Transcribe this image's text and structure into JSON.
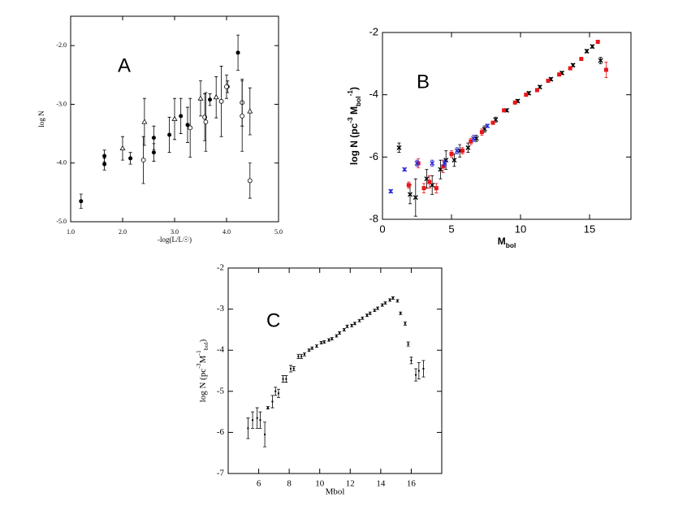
{
  "chart_data": [
    {
      "type": "scatter",
      "annotation": "A",
      "xlabel": "-log(L/L☉)",
      "ylabel": "log N",
      "xlim": [
        1.0,
        5.0
      ],
      "ylim": [
        -5.0,
        -1.5
      ],
      "xticks": [
        {
          "value": 1,
          "label": "1.0"
        },
        {
          "value": 2,
          "label": "2.0"
        },
        {
          "value": 3,
          "label": "3.0"
        },
        {
          "value": 4,
          "label": "4.0"
        },
        {
          "value": 5,
          "label": "5.0"
        }
      ],
      "yticks": [
        {
          "value": -2,
          "label": "-2.0"
        },
        {
          "value": -3,
          "label": "-3.0"
        },
        {
          "value": -4,
          "label": "-4.0"
        },
        {
          "value": -5,
          "label": "-5.0"
        }
      ],
      "series": [
        {
          "marker": "circle-filled",
          "color": "#000000",
          "x": [
            1.2,
            1.65,
            1.65,
            2.15,
            2.6,
            2.6,
            2.9,
            3.12,
            3.25,
            3.68,
            4.02,
            4.22
          ],
          "y": [
            -4.65,
            -3.88,
            -4.02,
            -3.92,
            -3.57,
            -3.82,
            -3.52,
            -3.2,
            -3.35,
            -2.92,
            -2.7,
            -2.12
          ],
          "err": [
            0.12,
            0.1,
            0.1,
            0.1,
            0.2,
            0.15,
            0.3,
            0.3,
            0.3,
            0.1,
            0.1,
            0.3
          ]
        },
        {
          "marker": "triangle",
          "color": "#000000",
          "x": [
            2.0,
            2.42,
            3.0,
            3.5,
            3.8,
            4.45
          ],
          "y": [
            -3.75,
            -3.3,
            -3.25,
            -2.9,
            -2.88,
            -3.12
          ],
          "err": [
            0.2,
            0.4,
            0.35,
            0.3,
            0.35,
            0.4
          ]
        },
        {
          "marker": "circle-open",
          "color": "#000000",
          "x": [
            2.4,
            3.3,
            3.58,
            3.6,
            3.9,
            4.0,
            4.3,
            4.3,
            4.45
          ],
          "y": [
            -3.95,
            -3.4,
            -3.22,
            -3.3,
            -2.95,
            -2.7,
            -2.97,
            -3.2,
            -4.3
          ],
          "err": [
            0.4,
            0.5,
            0.4,
            0.5,
            0.6,
            0.2,
            0.4,
            0.6,
            0.3
          ]
        }
      ]
    },
    {
      "type": "scatter",
      "annotation": "B",
      "xlabel": [
        "M",
        "bol"
      ],
      "ylabel": [
        "log N  (pc",
        "-3",
        " M",
        "bol",
        "-1",
        ")"
      ],
      "xlim": [
        0,
        18
      ],
      "ylim": [
        -8,
        -2
      ],
      "xticks": [
        0,
        5,
        10,
        15
      ],
      "yticks": [
        -2,
        -4,
        -6,
        -8
      ],
      "series": [
        {
          "marker": "cross",
          "color": "#000000",
          "x": [
            1.2,
            2.0,
            2.4,
            3.2,
            3.6,
            4.2,
            4.6,
            5.2,
            5.6,
            6.2,
            6.8,
            7.4,
            8.2,
            9.0,
            9.8,
            10.6,
            11.4,
            12.2,
            13.0,
            13.8,
            14.8,
            15.2,
            15.8
          ],
          "y": [
            -5.7,
            -7.2,
            -7.3,
            -6.7,
            -6.9,
            -6.4,
            -6.1,
            -6.1,
            -5.8,
            -5.7,
            -5.4,
            -5.1,
            -4.8,
            -4.5,
            -4.2,
            -3.95,
            -3.75,
            -3.5,
            -3.3,
            -3.05,
            -2.6,
            -2.45,
            -2.9
          ],
          "err": [
            0.15,
            0.3,
            0.6,
            0.3,
            0.3,
            0.3,
            0.3,
            0.2,
            0.2,
            0.15,
            0.1,
            0.1,
            0.08,
            0.05,
            0.05,
            0.05,
            0.05,
            0.05,
            0.05,
            0.05,
            0.05,
            0.05,
            0.1
          ]
        },
        {
          "marker": "square",
          "color": "#e8161b",
          "x": [
            1.9,
            2.6,
            3.0,
            3.4,
            3.9,
            4.4,
            5.0,
            5.8,
            6.4,
            7.2,
            8.0,
            8.8,
            9.6,
            10.4,
            11.2,
            12.0,
            12.8,
            13.6,
            14.4,
            15.6,
            16.2
          ],
          "y": [
            -6.9,
            -6.2,
            -7.0,
            -6.8,
            -7.0,
            -6.3,
            -5.9,
            -5.8,
            -5.5,
            -5.2,
            -4.9,
            -4.5,
            -4.25,
            -4.0,
            -3.85,
            -3.55,
            -3.35,
            -3.15,
            -2.85,
            -2.3,
            -3.2
          ],
          "err": [
            0.1,
            0.15,
            0.15,
            0.2,
            0.15,
            0.2,
            0.1,
            0.1,
            0.1,
            0.1,
            0.05,
            0.05,
            0.05,
            0.05,
            0.05,
            0.05,
            0.05,
            0.05,
            0.05,
            0.05,
            0.25
          ]
        },
        {
          "marker": "cross",
          "color": "#2b2bd6",
          "x": [
            0.6,
            1.6,
            2.5,
            3.6,
            4.5,
            5.4,
            6.6,
            7.6
          ],
          "y": [
            -7.1,
            -6.4,
            -6.2,
            -6.2,
            -6.2,
            -5.8,
            -5.4,
            -5.0
          ],
          "err": [
            0.05,
            0.05,
            0.1,
            0.1,
            0.1,
            0.1,
            0.1,
            0.05
          ]
        }
      ]
    },
    {
      "type": "scatter",
      "annotation": "C",
      "xlabel": "Mbol",
      "ylabel": [
        "log N  (pc",
        "-3",
        "M",
        "-1",
        "bol",
        ")"
      ],
      "xlim": [
        4,
        18
      ],
      "ylim": [
        -7,
        -2
      ],
      "xticks": [
        6,
        8,
        10,
        12,
        14,
        16
      ],
      "yticks": [
        -2,
        -3,
        -4,
        -5,
        -6,
        -7
      ],
      "series": [
        {
          "marker": "dot",
          "color": "#000000",
          "x": [
            5.3,
            5.6,
            5.9,
            6.1,
            6.4,
            6.6,
            6.9,
            7.1,
            7.3,
            7.6,
            7.8,
            8.1,
            8.3,
            8.6,
            8.8,
            9.0,
            9.3,
            9.5,
            9.8,
            10.1,
            10.3,
            10.6,
            10.8,
            11.1,
            11.3,
            11.6,
            11.8,
            12.1,
            12.3,
            12.6,
            12.8,
            13.1,
            13.3,
            13.6,
            13.8,
            14.1,
            14.3,
            14.6,
            14.8,
            15.1,
            15.3,
            15.6,
            15.8,
            16.0,
            16.3,
            16.5,
            16.8
          ],
          "y": [
            -5.9,
            -5.7,
            -5.65,
            -5.7,
            -6.05,
            -5.4,
            -5.25,
            -5.0,
            -5.05,
            -4.7,
            -4.7,
            -4.45,
            -4.45,
            -4.15,
            -4.15,
            -4.1,
            -4.0,
            -3.95,
            -3.9,
            -3.82,
            -3.8,
            -3.75,
            -3.72,
            -3.65,
            -3.58,
            -3.5,
            -3.42,
            -3.4,
            -3.35,
            -3.28,
            -3.22,
            -3.15,
            -3.1,
            -3.03,
            -2.98,
            -2.9,
            -2.85,
            -2.78,
            -2.73,
            -2.8,
            -3.1,
            -3.35,
            -3.85,
            -4.25,
            -4.6,
            -4.5,
            -4.45
          ],
          "err": [
            0.25,
            0.2,
            0.25,
            0.2,
            0.3,
            0.03,
            0.15,
            0.1,
            0.1,
            0.08,
            0.08,
            0.08,
            0.05,
            0.05,
            0.05,
            0.04,
            0.03,
            0.03,
            0.03,
            0.03,
            0.03,
            0.03,
            0.03,
            0.03,
            0.03,
            0.03,
            0.03,
            0.03,
            0.03,
            0.03,
            0.03,
            0.03,
            0.03,
            0.03,
            0.03,
            0.03,
            0.03,
            0.03,
            0.03,
            0.03,
            0.03,
            0.04,
            0.05,
            0.08,
            0.15,
            0.2,
            0.2
          ]
        }
      ]
    }
  ]
}
